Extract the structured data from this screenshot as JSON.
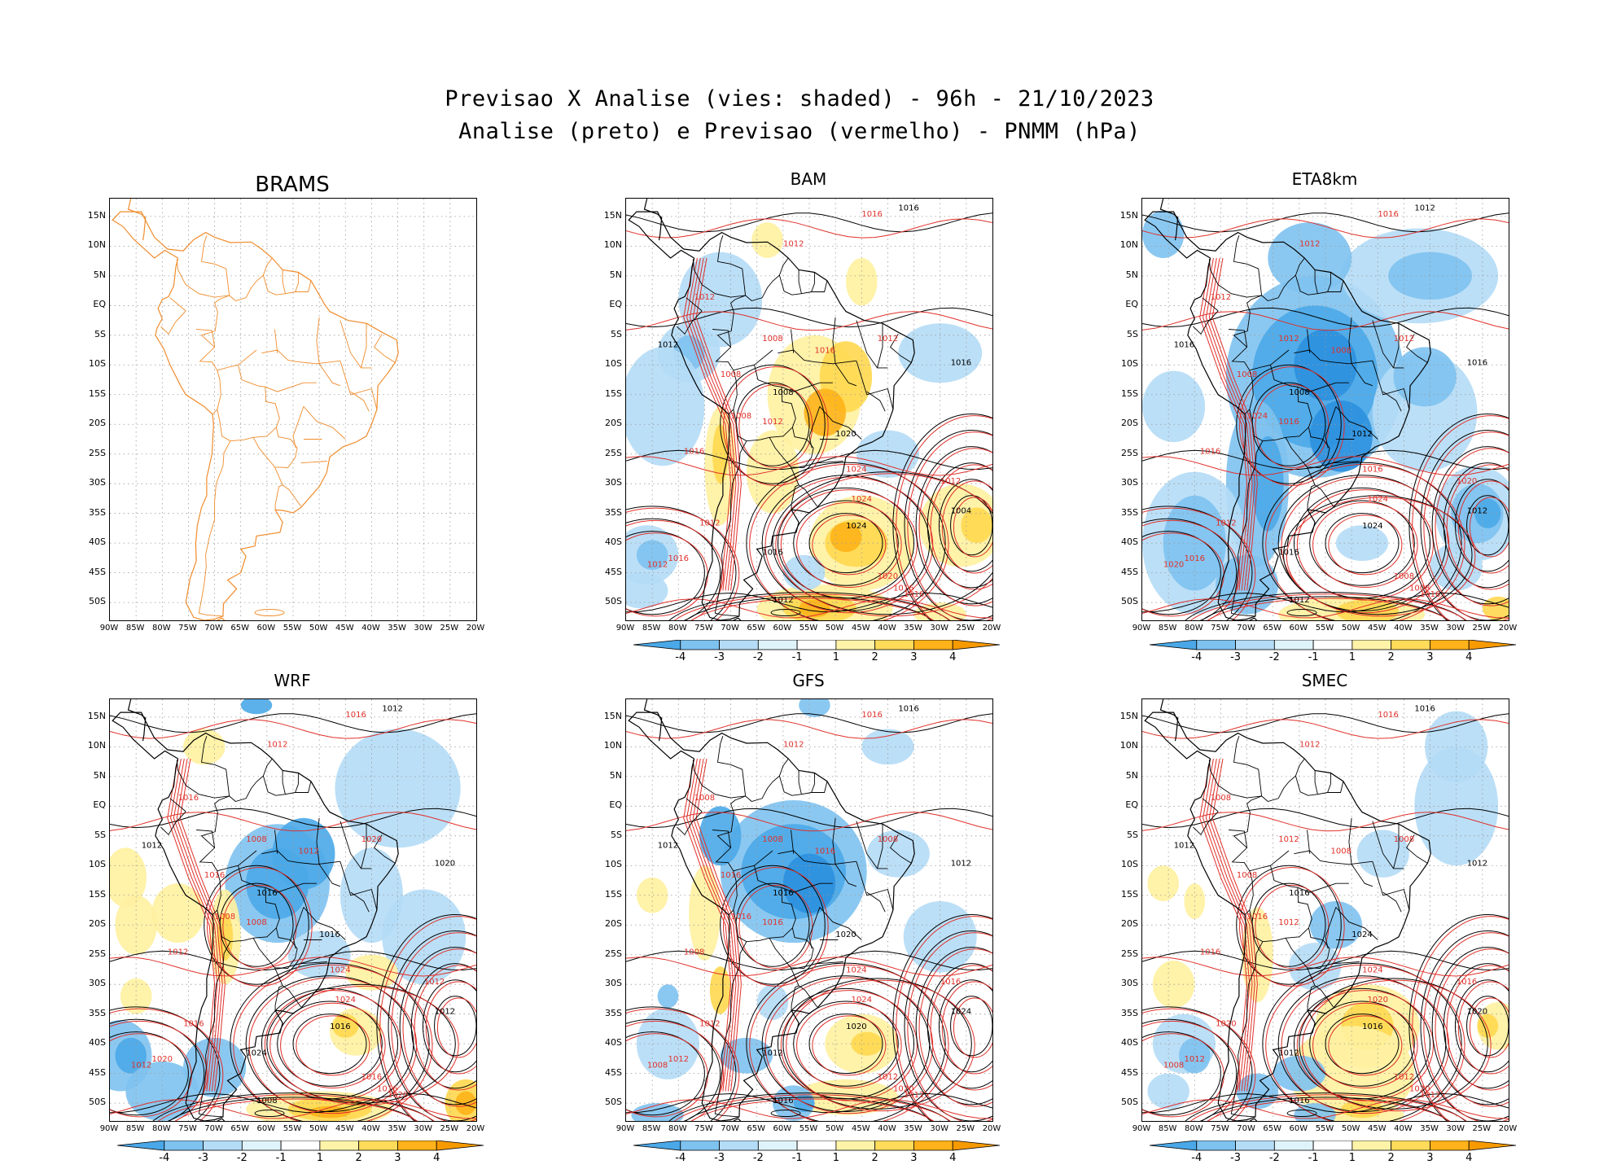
{
  "title": {
    "line1": "Previsao X Analise (vies: shaded) - 96h - 21/10/2023",
    "line2": "Analise (preto) e Previsao (vermelho) - PNMM (hPa)"
  },
  "lat_labels": [
    "15N",
    "10N",
    "5N",
    "EQ",
    "5S",
    "10S",
    "15S",
    "20S",
    "25S",
    "30S",
    "35S",
    "40S",
    "45S",
    "50S"
  ],
  "lon_labels": [
    "90W",
    "85W",
    "80W",
    "75W",
    "70W",
    "65W",
    "60W",
    "55W",
    "50W",
    "45W",
    "40W",
    "35W",
    "30W",
    "25W",
    "20W"
  ],
  "colorbar": {
    "labels": [
      "-4",
      "-3",
      "-2",
      "-1",
      "1",
      "2",
      "3",
      "4"
    ],
    "colors": [
      "#4aa8e8",
      "#7ec2f0",
      "#b4dcf6",
      "#dff3fb",
      "#ffffff",
      "#fff3a8",
      "#ffdb5a",
      "#ffb21a",
      "#f79a00"
    ]
  },
  "colors": {
    "analysis": "#000000",
    "forecast": "#e0302a",
    "coast_brams": "#f08c2c"
  },
  "panels": [
    {
      "name": "BRAMS",
      "has_colorbar": false,
      "labels": []
    },
    {
      "name": "BAM",
      "has_colorbar": true,
      "labels": [
        "1016",
        "1016",
        "1012",
        "1012",
        "1012",
        "1008",
        "1008",
        "1008",
        "1012",
        "1016",
        "1016",
        "1012",
        "1016",
        "1020",
        "1024",
        "1024",
        "1024",
        "1016",
        "1012",
        "1012",
        "1020",
        "1016",
        "1004",
        "1012",
        "1008",
        "1016",
        "1012",
        "1016"
      ]
    },
    {
      "name": "ETA8km",
      "has_colorbar": true,
      "labels": [
        "1016",
        "1012",
        "1012",
        "1012",
        "1016",
        "1012",
        "1008",
        "1008",
        "1016",
        "1016",
        "1016",
        "1012",
        "1008",
        "1012",
        "1016",
        "1024",
        "1024",
        "1016",
        "1020",
        "1012",
        "1008",
        "1016",
        "1012",
        "1020",
        "1024",
        "1016",
        "1012",
        "1008"
      ]
    },
    {
      "name": "WRF",
      "has_colorbar": true,
      "labels": [
        "1016",
        "1012",
        "1012",
        "1016",
        "1012",
        "1008",
        "1016",
        "1016",
        "1008",
        "1012",
        "1020",
        "1016",
        "1012",
        "1016",
        "1024",
        "1024",
        "1016",
        "1020",
        "1012",
        "1008",
        "1016",
        "1020",
        "1012",
        "1012",
        "1008",
        "1024",
        "1020",
        "1016"
      ]
    },
    {
      "name": "GFS",
      "has_colorbar": true,
      "labels": [
        "1016",
        "1016",
        "1012",
        "1008",
        "1012",
        "1008",
        "1016",
        "1016",
        "1016",
        "1008",
        "1012",
        "1012",
        "1016",
        "1020",
        "1024",
        "1024",
        "1020",
        "1012",
        "1008",
        "1016",
        "1012",
        "1012",
        "1024",
        "1016",
        "1016",
        "1012",
        "1008",
        "1020"
      ]
    },
    {
      "name": "SMEC",
      "has_colorbar": true,
      "labels": [
        "1016",
        "1016",
        "1012",
        "1008",
        "1012",
        "1012",
        "1008",
        "1016",
        "1012",
        "1016",
        "1012",
        "1020",
        "1008",
        "1024",
        "1024",
        "1020",
        "1016",
        "1012",
        "1008",
        "1016",
        "1012",
        "1012",
        "1020",
        "1016",
        "1016",
        "1012",
        "1008",
        "1020"
      ]
    }
  ]
}
